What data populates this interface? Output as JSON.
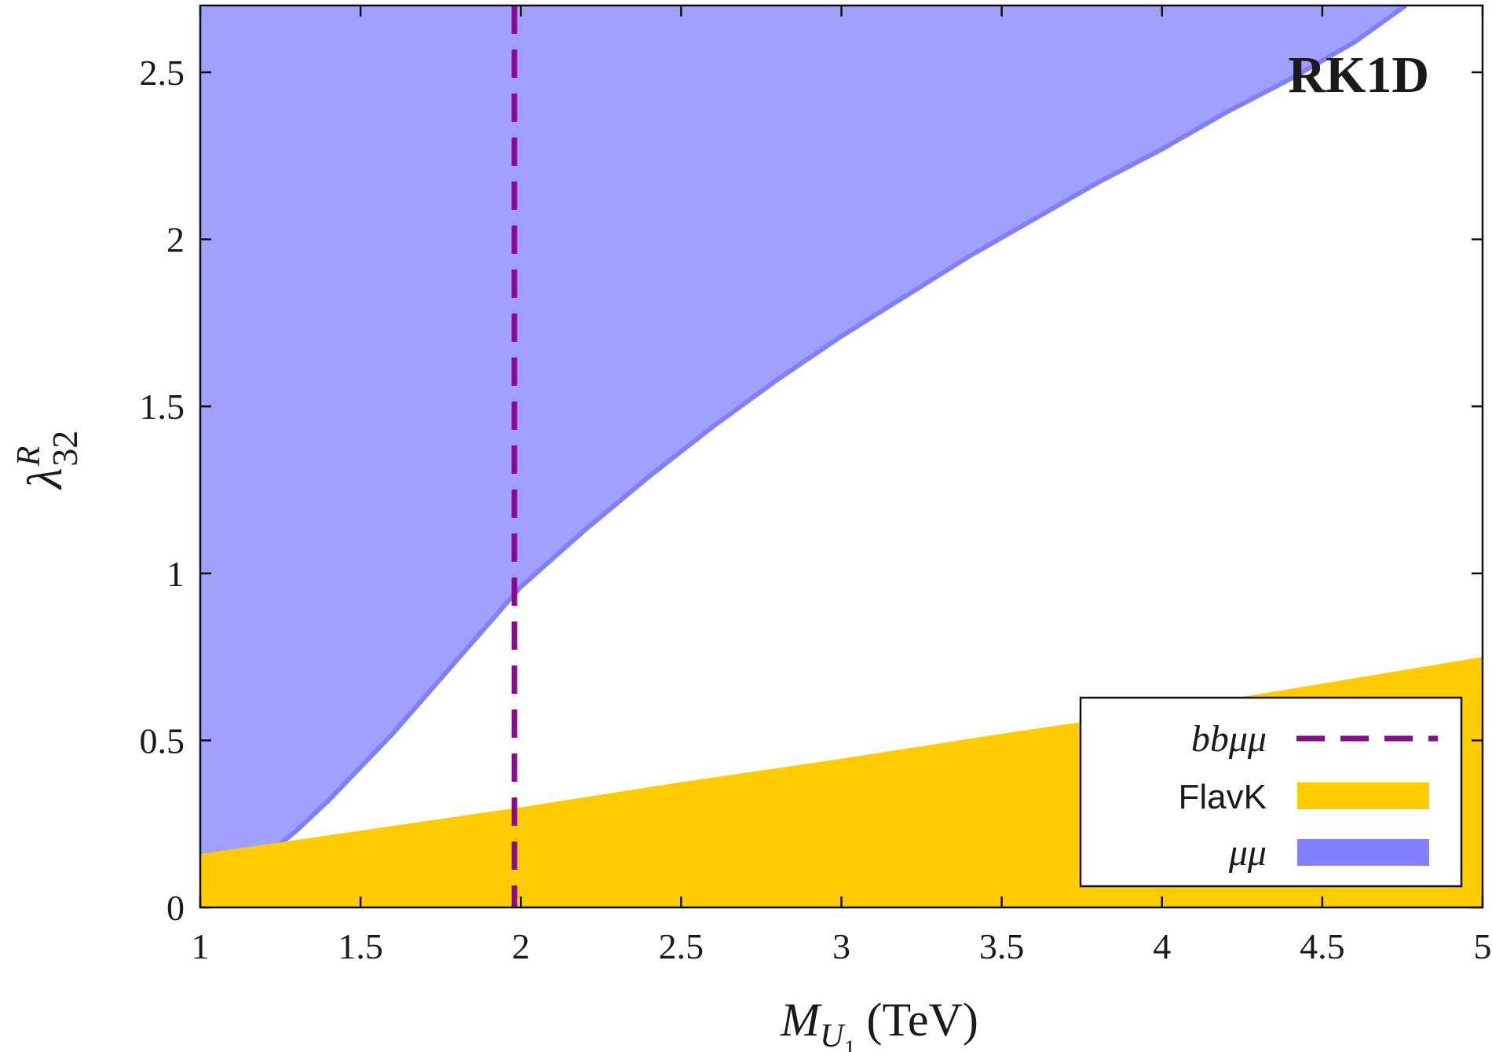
{
  "chart_data": {
    "type": "area",
    "tag": "RK1D",
    "xlabel": {
      "main": "M",
      "sub": "U",
      "subsub": "1",
      "unit": "(TeV)"
    },
    "ylabel": {
      "main": "λ",
      "sup": "R",
      "sub": "32"
    },
    "xlim": [
      1,
      5
    ],
    "ylim": [
      0,
      2.7
    ],
    "xticks": [
      1,
      1.5,
      2,
      2.5,
      3,
      3.5,
      4,
      4.5,
      5
    ],
    "xtick_labels": [
      "1",
      "1.5",
      "2",
      "2.5",
      "3",
      "3.5",
      "4",
      "4.5",
      "5"
    ],
    "yticks": [
      0,
      0.5,
      1,
      1.5,
      2,
      2.5
    ],
    "ytick_labels": [
      "0",
      "0.5",
      "1",
      "1.5",
      "2",
      "2.5"
    ],
    "grid": false,
    "legend_position": "bottom-right",
    "series": [
      {
        "name": "bbμμ",
        "kind": "vertical-dashed-line",
        "color": "#8b0a8b",
        "x": 1.98
      },
      {
        "name": "FlavK",
        "kind": "excluded-region-below",
        "color": "#ffcc00",
        "x": [
          1.0,
          1.25,
          1.5,
          2.0,
          2.5,
          3.0,
          3.5,
          4.0,
          4.5,
          5.0
        ],
        "y": [
          0.16,
          0.195,
          0.23,
          0.3,
          0.375,
          0.445,
          0.52,
          0.59,
          0.67,
          0.75
        ]
      },
      {
        "name": "μμ",
        "kind": "excluded-region-above",
        "color": "#8080ff",
        "x": [
          1.0,
          1.1,
          1.2,
          1.3,
          1.4,
          1.5,
          1.6,
          1.7,
          1.8,
          1.9,
          2.0,
          2.2,
          2.4,
          2.6,
          2.8,
          3.0,
          3.2,
          3.4,
          3.6,
          3.8,
          4.0,
          4.2,
          4.4,
          4.6,
          4.76
        ],
        "y": [
          0.02,
          0.08,
          0.15,
          0.23,
          0.32,
          0.42,
          0.52,
          0.63,
          0.74,
          0.85,
          0.96,
          1.13,
          1.29,
          1.44,
          1.58,
          1.71,
          1.83,
          1.95,
          2.06,
          2.17,
          2.27,
          2.38,
          2.48,
          2.59,
          2.7
        ]
      }
    ]
  }
}
